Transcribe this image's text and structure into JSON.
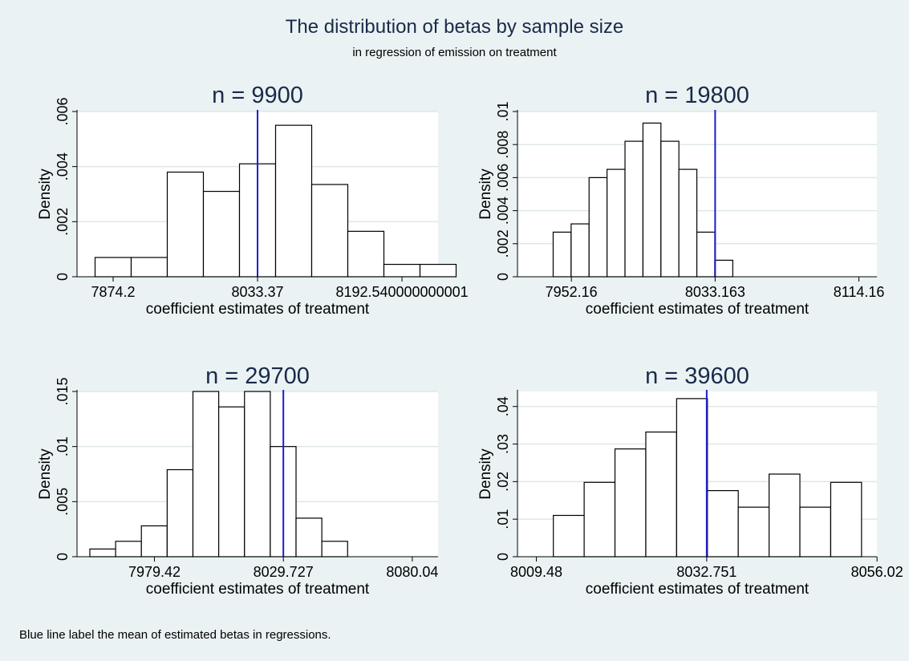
{
  "title": "The distribution of betas by sample size",
  "subtitle": "in regression of emission on treatment",
  "note": "Blue line label the mean of estimated betas in regressions.",
  "colors": {
    "background": "#eaf2f3",
    "plot_bg": "#ffffff",
    "bar_fill": "#ffffff",
    "bar_stroke": "#000000",
    "grid": "#dfe7e9",
    "mean_line": "#1d1dcc"
  },
  "chart_data": [
    {
      "type": "bar",
      "title": "n = 9900",
      "xlabel": "coefficient estimates of treatment",
      "ylabel": "Density",
      "xlim": [
        7834.4,
        8232.3
      ],
      "ylim": [
        0,
        0.006
      ],
      "bin_start": 7854.3,
      "bin_width": 39.79,
      "values": [
        0.0007,
        0.0007,
        0.0038,
        0.0031,
        0.0041,
        0.0055,
        0.00335,
        0.00165,
        0.00045,
        0.00045
      ],
      "mean": 8033.37,
      "xticks": [
        7874.2,
        8033.37,
        8192.54
      ],
      "xtick_labels": [
        "7874.2",
        "8033.37",
        "8192.540000000001"
      ],
      "yticks": [
        0,
        0.002,
        0.004,
        0.006
      ],
      "ytick_labels": [
        "0",
        ".002",
        ".004",
        ".006"
      ],
      "grid": true
    },
    {
      "type": "bar",
      "title": "n = 19800",
      "xlabel": "coefficient estimates of treatment",
      "ylabel": "Density",
      "xlim": [
        7921.8,
        8124.3
      ],
      "ylim": [
        0,
        0.01
      ],
      "bin_start": 7941.9,
      "bin_width": 10.12,
      "values": [
        0.0027,
        0.0032,
        0.006,
        0.0065,
        0.0082,
        0.0093,
        0.0082,
        0.0065,
        0.0027,
        0.001
      ],
      "mean": 8033.163,
      "xticks": [
        7952.16,
        8033.163,
        8114.16
      ],
      "xtick_labels": [
        "7952.16",
        "8033.163",
        "8114.16"
      ],
      "yticks": [
        0,
        0.002,
        0.004,
        0.006,
        0.008,
        0.01
      ],
      "ytick_labels": [
        "0",
        ".002",
        ".004",
        ".006",
        ".008",
        ".01"
      ],
      "grid": true
    },
    {
      "type": "bar",
      "title": "n = 29700",
      "xlabel": "coefficient estimates of treatment",
      "ylabel": "Density",
      "xlim": [
        7949.2,
        8090.1
      ],
      "ylim": [
        0,
        0.015
      ],
      "bin_start": 7954.2,
      "bin_width": 10.06,
      "values": [
        0.0007,
        0.0014,
        0.0028,
        0.0079,
        0.015,
        0.0136,
        0.015,
        0.01,
        0.0035,
        0.0014
      ],
      "mean": 8029.727,
      "xticks": [
        7979.42,
        8029.727,
        8080.04
      ],
      "xtick_labels": [
        "7979.42",
        "8029.727",
        "8080.04"
      ],
      "yticks": [
        0,
        0.005,
        0.01,
        0.015
      ],
      "ytick_labels": [
        "0",
        ".005",
        ".01",
        ".015"
      ],
      "grid": true
    },
    {
      "type": "bar",
      "title": "n = 39600",
      "xlabel": "coefficient estimates of treatment",
      "ylabel": "Density",
      "xlim": [
        8006.9,
        8056.0
      ],
      "ylim": [
        0,
        0.044
      ],
      "bin_start": 8011.8,
      "bin_width": 4.21,
      "values": [
        0.011,
        0.0198,
        0.0287,
        0.0332,
        0.0421,
        0.0176,
        0.0132,
        0.022,
        0.0132,
        0.0198
      ],
      "mean": 8032.751,
      "xticks": [
        8009.48,
        8032.751,
        8056.02
      ],
      "xtick_labels": [
        "8009.48",
        "8032.751",
        "8056.02"
      ],
      "yticks": [
        0,
        0.01,
        0.02,
        0.03,
        0.04
      ],
      "ytick_labels": [
        "0",
        ".01",
        ".02",
        ".03",
        ".04"
      ],
      "grid": true
    }
  ]
}
